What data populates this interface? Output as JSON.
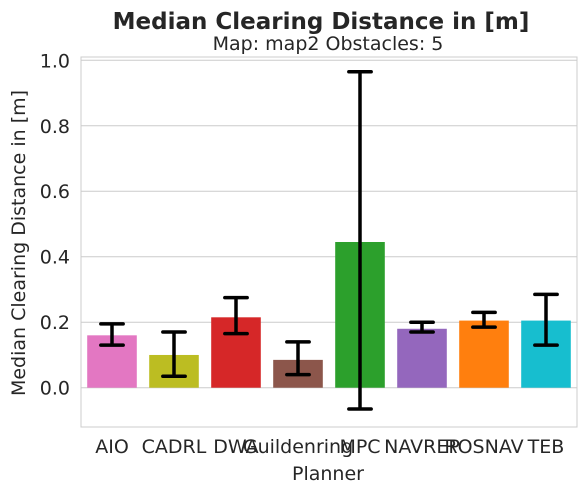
{
  "chart_data": {
    "type": "bar",
    "title": "Median Clearing Distance in [m]",
    "subtitle": "Map: map2 Obstacles: 5",
    "xlabel": "Planner",
    "ylabel": "Median Clearing Distance in [m]",
    "ylim": [
      -0.12,
      1.01
    ],
    "yticks": [
      0.0,
      0.2,
      0.4,
      0.6,
      0.8,
      1.0
    ],
    "ytick_labels": [
      "0.0",
      "0.2",
      "0.4",
      "0.6",
      "0.8",
      "1.0"
    ],
    "grid": true,
    "categories": [
      "AIO",
      "CADRL",
      "DWA",
      "Guildenring",
      "MPC",
      "NAVREP",
      "ROSNAV",
      "TEB"
    ],
    "values": [
      0.16,
      0.1,
      0.215,
      0.085,
      0.445,
      0.18,
      0.205,
      0.205
    ],
    "error_low": [
      0.13,
      0.035,
      0.165,
      0.04,
      -0.065,
      0.17,
      0.185,
      0.13
    ],
    "error_high": [
      0.195,
      0.17,
      0.275,
      0.14,
      0.965,
      0.2,
      0.23,
      0.285
    ],
    "colors": [
      "#e377c2",
      "#bcbd22",
      "#d62728",
      "#8c564b",
      "#2ca02c",
      "#9467bd",
      "#ff7f0e",
      "#17becf"
    ]
  }
}
